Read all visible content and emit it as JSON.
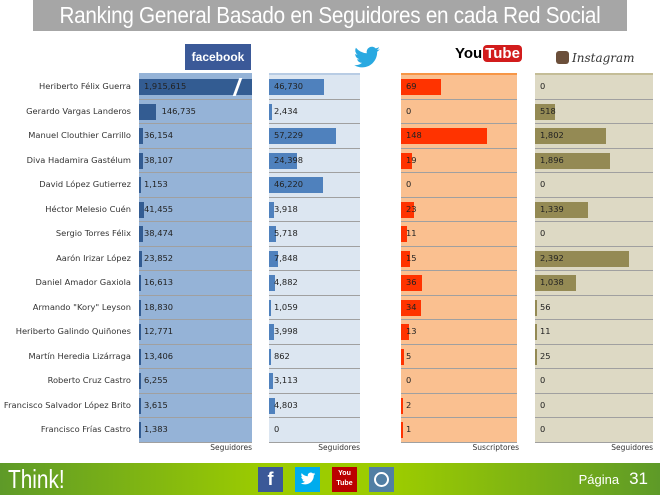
{
  "title": "Ranking General Basado en Seguidores en cada Red Social",
  "chart_data": {
    "type": "bar",
    "orientation": "horizontal",
    "categories": [
      "Heriberto Félix Guerra",
      "Gerardo Vargas Landeros",
      "Manuel Clouthier Carrillo",
      "Diva Hadamira Gastélum",
      "David López Gutierrez",
      "Héctor Melesio Cuén",
      "Sergio Torres Félix",
      "Aarón Irizar López",
      "Daniel Amador Gaxiola",
      "Armando \"Kory\" Leyson",
      "Heriberto Galindo Quiñones",
      "Martín Heredia Lizárraga",
      "Roberto Cruz Castro",
      "Francisco Salvador López Brito",
      "Francisco Frías Castro"
    ],
    "series": [
      {
        "name": "facebook",
        "unit": "Seguidores",
        "color": "#335c92",
        "bg": "#95b3d7",
        "axis_max": 1000000,
        "broken_axis": true,
        "values": [
          1915615,
          146735,
          36154,
          38107,
          1153,
          41455,
          38474,
          23852,
          16613,
          18830,
          12771,
          13406,
          6255,
          3615,
          1383
        ],
        "labels": [
          "1,915,615",
          "146,735",
          "36,154",
          "38,107",
          "1,153",
          "41,455",
          "38,474",
          "23,852",
          "16,613",
          "18,830",
          "12,771",
          "13,406",
          "6,255",
          "3,615",
          "1,383"
        ]
      },
      {
        "name": "twitter",
        "unit": "Seguidores",
        "color": "#4f81bd",
        "bg": "#dce6f1",
        "axis_max": 78000,
        "values": [
          46730,
          2434,
          57229,
          24398,
          46220,
          3918,
          5718,
          7848,
          4882,
          1059,
          3998,
          862,
          3113,
          4803,
          0
        ],
        "labels": [
          "46,730",
          "2,434",
          "57,229",
          "24,398",
          "46,220",
          "3,918",
          "5,718",
          "7,848",
          "4,882",
          "1,059",
          "3,998",
          "862",
          "3,113",
          "4,803",
          "0"
        ]
      },
      {
        "name": "YouTube",
        "unit": "Suscriptores",
        "color": "#ff3300",
        "bg": "#fac090",
        "axis_max": 200,
        "values": [
          69,
          0,
          148,
          19,
          0,
          23,
          11,
          15,
          36,
          34,
          13,
          5,
          0,
          2,
          1
        ],
        "labels": [
          "69",
          "0",
          "148",
          "19",
          "0",
          "23",
          "11",
          "15",
          "36",
          "34",
          "13",
          "5",
          "0",
          "2",
          "1"
        ]
      },
      {
        "name": "Instagram",
        "unit": "Seguidores",
        "color": "#948a54",
        "bg": "#ddd9c4",
        "axis_max": 3000,
        "values": [
          0,
          518,
          1802,
          1896,
          0,
          1339,
          0,
          2392,
          1038,
          56,
          11,
          25,
          0,
          0,
          0
        ],
        "labels": [
          "0",
          "518",
          "1,802",
          "1,896",
          "0",
          "1,339",
          "0",
          "2,392",
          "1,038",
          "56",
          "11",
          "25",
          "0",
          "0",
          "0"
        ]
      }
    ]
  },
  "logos": {
    "facebook": "facebook",
    "youtube_you": "You",
    "youtube_tube": "Tube",
    "instagram": "Instagram"
  },
  "footer": {
    "brand": "Think!",
    "page_label": "Página",
    "page_number": "31",
    "icons": [
      "facebook-icon",
      "twitter-icon",
      "youtube-icon",
      "instagram-icon"
    ]
  }
}
